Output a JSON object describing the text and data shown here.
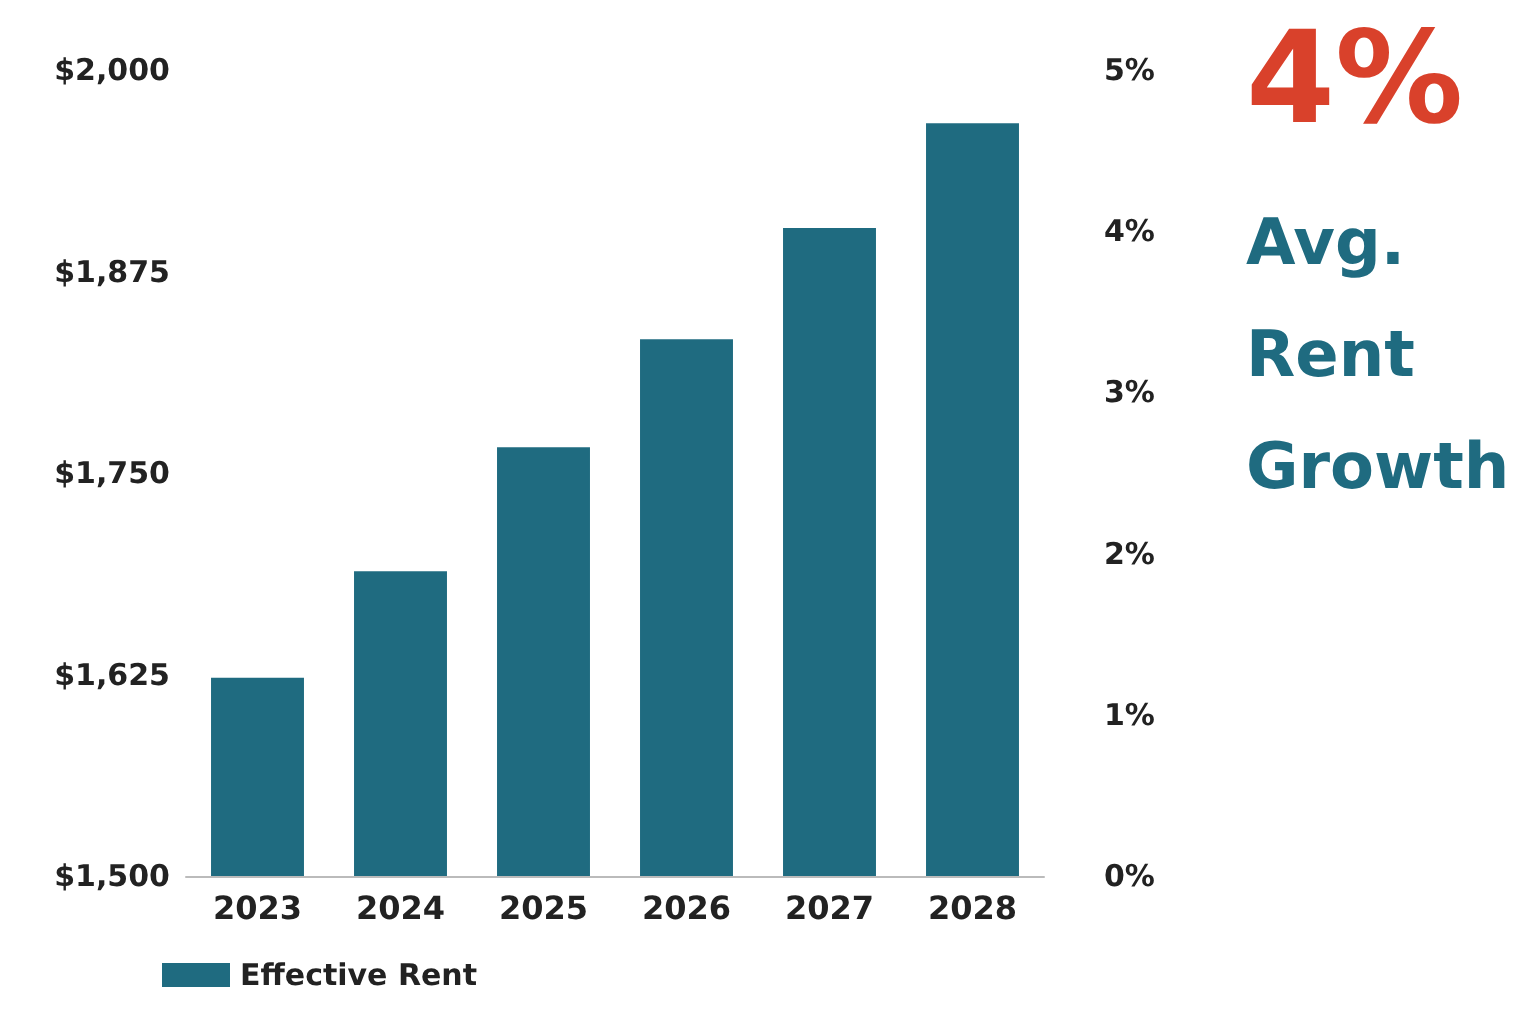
{
  "chart_data": {
    "type": "bar",
    "categories": [
      "2023",
      "2024",
      "2025",
      "2026",
      "2027",
      "2028"
    ],
    "series": [
      {
        "name": "Effective Rent",
        "color": "#1f6b80",
        "values": [
          1623,
          1689,
          1766,
          1833,
          1902,
          1967
        ]
      }
    ],
    "ylim": [
      1500,
      2000
    ],
    "yticks": [
      {
        "value": 1500,
        "label": "$1,500"
      },
      {
        "value": 1625,
        "label": "$1,625"
      },
      {
        "value": 1750,
        "label": "$1,750"
      },
      {
        "value": 1875,
        "label": "$1,875"
      },
      {
        "value": 2000,
        "label": "$2,000"
      }
    ],
    "y2lim": [
      0,
      5
    ],
    "y2ticks": [
      {
        "value": 0,
        "label": "0%"
      },
      {
        "value": 1,
        "label": "1%"
      },
      {
        "value": 2,
        "label": "2%"
      },
      {
        "value": 3,
        "label": "3%"
      },
      {
        "value": 4,
        "label": "4%"
      },
      {
        "value": 5,
        "label": "5%"
      }
    ],
    "annotations": [
      "4%",
      "Avg. Rent Growth"
    ],
    "grid": false,
    "legend": "bottom left"
  }
}
